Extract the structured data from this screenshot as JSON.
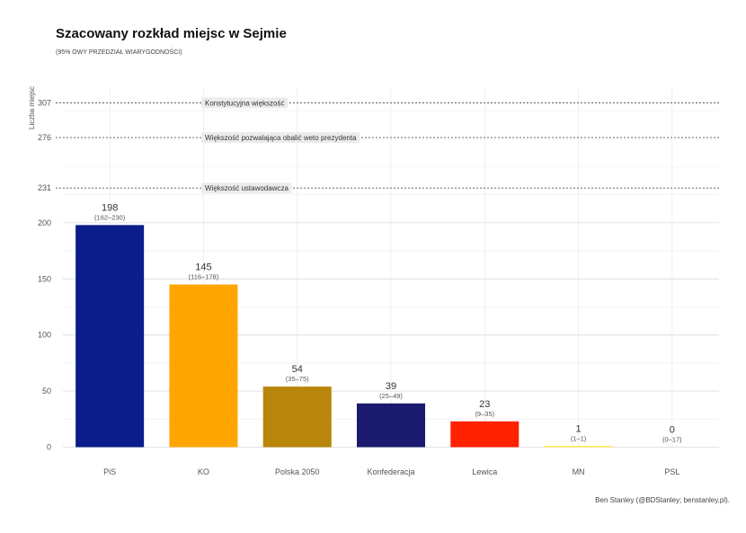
{
  "chart_data": {
    "type": "bar",
    "title": "Szacowany rozkład miejsc w Sejmie",
    "subtitle": "(95% OWY PRZEDZIAŁ WIARYGODNOŚCI)",
    "ylabel": "Liczba miejsc",
    "xlabel": "",
    "ylim": [
      0,
      320
    ],
    "yticks": [
      0,
      50,
      100,
      150,
      200,
      231,
      276,
      307
    ],
    "grid": true,
    "categories": [
      "PiS",
      "KO",
      "Polska 2050",
      "Konfederacja",
      "Lewica",
      "MN",
      "PSL"
    ],
    "values": [
      198,
      145,
      54,
      39,
      23,
      1,
      0
    ],
    "intervals": [
      "(162–230)",
      "(116–178)",
      "(35–75)",
      "(25–49)",
      "(9–35)",
      "(1–1)",
      "(0–17)"
    ],
    "colors": [
      "#0b1d8a",
      "#ffa500",
      "#b8860b",
      "#1a1a6e",
      "#ff2200",
      "#ffee55",
      "#2e8b57"
    ],
    "thresholds": [
      {
        "value": 307,
        "label": "Konstytucyjna większość"
      },
      {
        "value": 276,
        "label": "Większość pozwalająca obalić weto prezydenta"
      },
      {
        "value": 231,
        "label": "Większość ustawodawcza"
      }
    ],
    "credit": "Ben Stanley (@BDStanley; benstanley.pl)."
  }
}
